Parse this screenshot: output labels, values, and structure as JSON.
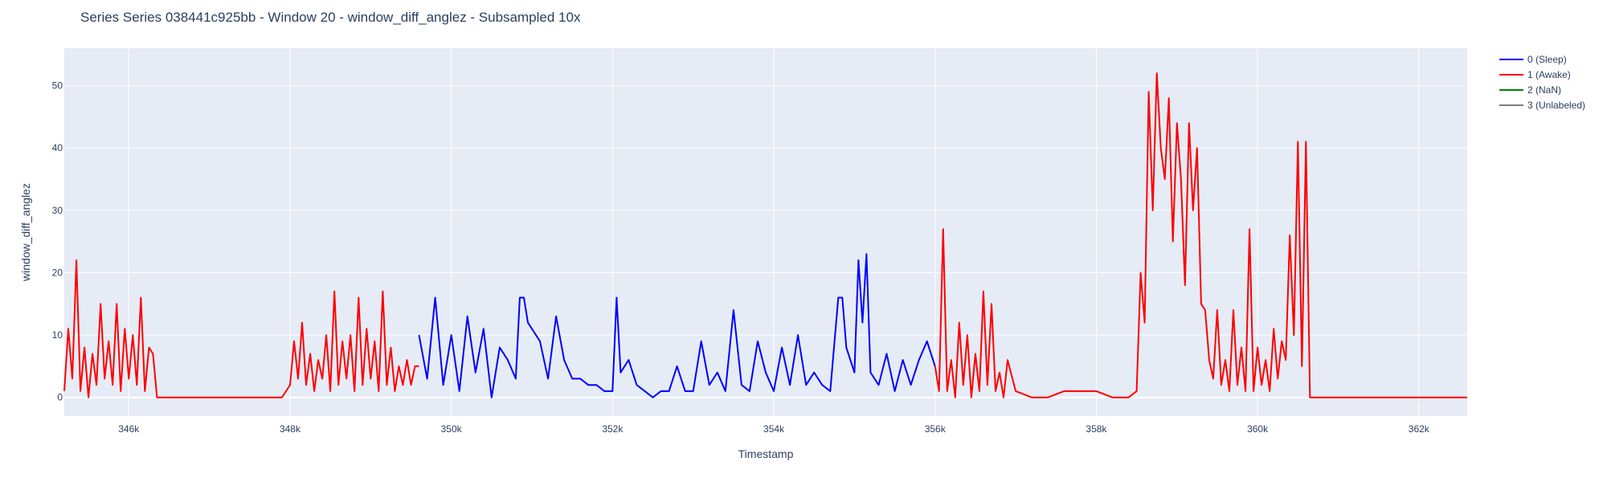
{
  "chart_data": {
    "type": "line",
    "title": "Series Series 038441c925bb - Window 20 - window_diff_anglez - Subsampled 10x",
    "xlabel": "Timestamp",
    "ylabel": "window_diff_anglez",
    "xlim": [
      345200,
      362600
    ],
    "ylim": [
      -3,
      56
    ],
    "x_ticks": [
      346000,
      348000,
      350000,
      352000,
      354000,
      356000,
      358000,
      360000,
      362000
    ],
    "x_tick_labels": [
      "346k",
      "348k",
      "350k",
      "352k",
      "354k",
      "356k",
      "358k",
      "360k",
      "362k"
    ],
    "y_ticks": [
      0,
      10,
      20,
      30,
      40,
      50
    ],
    "y_tick_labels": [
      "0",
      "10",
      "20",
      "30",
      "40",
      "50"
    ],
    "grid": true,
    "legend_position": "top-right",
    "series": [
      {
        "name": "0 (Sleep)",
        "color": "#0000ff",
        "segments": [
          {
            "x": [
              349600,
              349700,
              349800,
              349900,
              350000,
              350100,
              350200,
              350300,
              350400,
              350500,
              350600,
              350700,
              350800,
              350850,
              350900,
              350950,
              351000,
              351100,
              351200,
              351300,
              351400,
              351500,
              351600,
              351700,
              351800,
              351900,
              352000,
              352050,
              352100,
              352200,
              352300,
              352400,
              352500,
              352600,
              352700,
              352800,
              352900,
              353000,
              353100,
              353200,
              353300,
              353400,
              353500,
              353600,
              353700,
              353800,
              353900,
              354000,
              354100,
              354200,
              354300,
              354400,
              354500,
              354600,
              354700,
              354800,
              354850,
              354900,
              355000,
              355050,
              355100,
              355150,
              355200,
              355300,
              355400,
              355500,
              355600,
              355700,
              355800,
              355900,
              356000
            ],
            "y": [
              10,
              3,
              16,
              2,
              10,
              1,
              13,
              4,
              11,
              0,
              8,
              6,
              3,
              16,
              16,
              12,
              11,
              9,
              3,
              13,
              6,
              3,
              3,
              2,
              2,
              1,
              1,
              16,
              4,
              6,
              2,
              1,
              0,
              1,
              1,
              5,
              1,
              1,
              9,
              2,
              4,
              1,
              14,
              2,
              1,
              9,
              4,
              1,
              8,
              2,
              10,
              2,
              4,
              2,
              1,
              16,
              16,
              8,
              4,
              22,
              12,
              23,
              4,
              2,
              7,
              1,
              6,
              2,
              6,
              9,
              5
            ]
          }
        ]
      },
      {
        "name": "1 (Awake)",
        "color": "#ff0000",
        "segments": [
          {
            "x": [
              345200,
              345250,
              345300,
              345350,
              345400,
              345450,
              345500,
              345550,
              345600,
              345650,
              345700,
              345750,
              345800,
              345850,
              345900,
              345950,
              346000,
              346050,
              346100,
              346150,
              346200,
              346250,
              346300,
              346350,
              346400,
              347000,
              347500,
              347900,
              348000,
              348050,
              348100,
              348150,
              348200,
              348250,
              348300,
              348350,
              348400,
              348450,
              348500,
              348550,
              348600,
              348650,
              348700,
              348750,
              348800,
              348850,
              348900,
              348950,
              349000,
              349050,
              349100,
              349150,
              349200,
              349250,
              349300,
              349350,
              349400,
              349450,
              349500,
              349550,
              349600
            ],
            "y": [
              1,
              11,
              3,
              22,
              1,
              8,
              0,
              7,
              2,
              15,
              3,
              9,
              2,
              15,
              1,
              11,
              3,
              10,
              2,
              16,
              1,
              8,
              7,
              0,
              0,
              0,
              0,
              0,
              2,
              9,
              3,
              12,
              2,
              7,
              1,
              6,
              3,
              10,
              1,
              17,
              2,
              9,
              3,
              10,
              1,
              16,
              2,
              11,
              3,
              9,
              1,
              17,
              2,
              8,
              1,
              5,
              2,
              6,
              2,
              5,
              5
            ]
          },
          {
            "x": [
              356000,
              356050,
              356100,
              356150,
              356200,
              356250,
              356300,
              356350,
              356400,
              356450,
              356500,
              356550,
              356600,
              356650,
              356700,
              356750,
              356800,
              356850,
              356900,
              357000,
              357200,
              357400,
              357600,
              357800,
              358000,
              358200,
              358400,
              358500,
              358550,
              358600,
              358650,
              358700,
              358750,
              358800,
              358850,
              358900,
              358950,
              359000,
              359050,
              359100,
              359150,
              359200,
              359250,
              359300,
              359350,
              359400,
              359450,
              359500,
              359550,
              359600,
              359650,
              359700,
              359750,
              359800,
              359850,
              359900,
              359950,
              360000,
              360050,
              360100,
              360150,
              360200,
              360250,
              360300,
              360350,
              360400,
              360450,
              360500,
              360550,
              360600,
              360650,
              360700,
              360750,
              360800,
              360850,
              360900,
              360950,
              361000,
              362000,
              362600
            ],
            "y": [
              5,
              1,
              27,
              1,
              6,
              0,
              12,
              2,
              10,
              0,
              7,
              1,
              17,
              2,
              15,
              1,
              4,
              0,
              6,
              1,
              0,
              0,
              1,
              1,
              1,
              0,
              0,
              1,
              20,
              12,
              49,
              30,
              52,
              40,
              35,
              48,
              25,
              44,
              35,
              18,
              44,
              30,
              40,
              15,
              14,
              6,
              3,
              14,
              2,
              6,
              1,
              14,
              2,
              8,
              1,
              27,
              1,
              8,
              2,
              6,
              1,
              11,
              3,
              9,
              6,
              26,
              10,
              41,
              5,
              41,
              0,
              0,
              0,
              0,
              0,
              0,
              0,
              0,
              0,
              0
            ]
          }
        ]
      },
      {
        "name": "2 (NaN)",
        "color": "#008000",
        "segments": []
      },
      {
        "name": "3 (Unlabeled)",
        "color": "#808080",
        "segments": []
      }
    ]
  }
}
